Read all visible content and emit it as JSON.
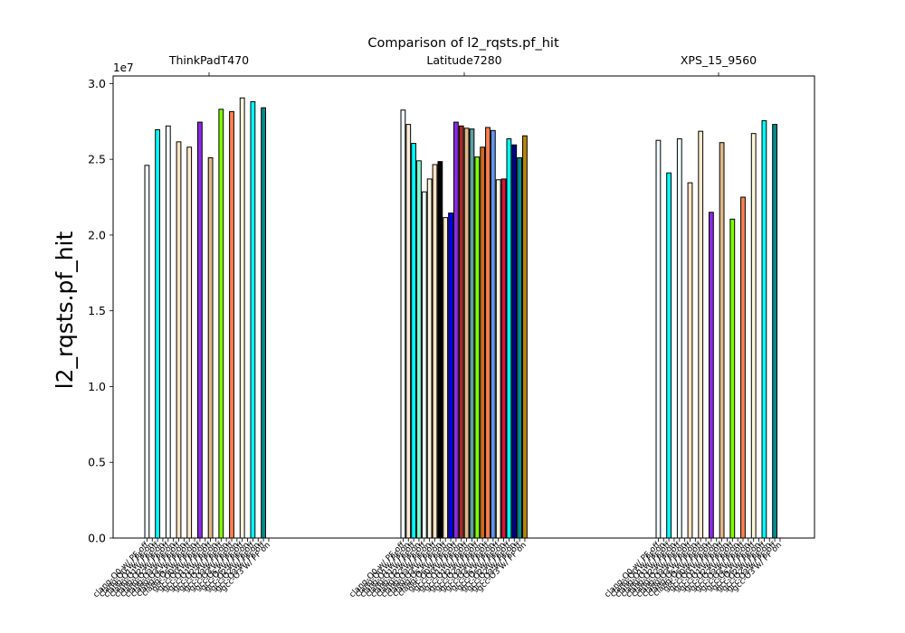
{
  "chart_data": {
    "type": "bar",
    "title": "Comparison of l2_rqsts.pf_hit",
    "ylabel": "l2_rqsts.pf_hit",
    "xlabel": "",
    "y_offset_text": "1e7",
    "ylim": [
      0,
      30500000
    ],
    "yticks": [
      0,
      5000000,
      10000000,
      15000000,
      20000000,
      25000000,
      30000000
    ],
    "ytick_labels": [
      "0.0",
      "0.5",
      "1.0",
      "1.5",
      "2.0",
      "2.5",
      "3.0"
    ],
    "grid": false,
    "legend": "none",
    "groups": [
      {
        "name": "ThinkPadT470",
        "bars": [
          {
            "label": "clang-O0 w/ PF off",
            "value": 24600000,
            "color": "#f0f8ff"
          },
          {
            "label": "clang-O0 w/ PF on",
            "value": 0,
            "color": "#faebd7"
          },
          {
            "label": "clang-O1 w/ PF off",
            "value": 26950000,
            "color": "#00ffff"
          },
          {
            "label": "clang-O1 w/ PF on",
            "value": 0,
            "color": "#7fffd4"
          },
          {
            "label": "clang-O2 w/ PF off",
            "value": 27200000,
            "color": "#f0ffff"
          },
          {
            "label": "clang-O2 w/ PF on",
            "value": 0,
            "color": "#f5f5dc"
          },
          {
            "label": "clang-O3 w/ PF off",
            "value": 26150000,
            "color": "#ffe4c4"
          },
          {
            "label": "clang-O3 w/ PF on",
            "value": 0,
            "color": "#000000"
          },
          {
            "label": "clang-Os w/ PF off",
            "value": 25800000,
            "color": "#ffebcd"
          },
          {
            "label": "clang-Os w/ PF on",
            "value": 0,
            "color": "#0000ff"
          },
          {
            "label": "gcc-O0 w/ PF off",
            "value": 27450000,
            "color": "#8a2be2"
          },
          {
            "label": "gcc-O0 w/ PF on",
            "value": 0,
            "color": "#a52a2a"
          },
          {
            "label": "gcc-O1 w/ PF off",
            "value": 25100000,
            "color": "#deb887"
          },
          {
            "label": "gcc-O1 w/ PF on",
            "value": 0,
            "color": "#5f9ea0"
          },
          {
            "label": "gcc-O2 w/ PF off",
            "value": 28300000,
            "color": "#7fff00"
          },
          {
            "label": "gcc-O2 w/ PF on",
            "value": 0,
            "color": "#d2691e"
          },
          {
            "label": "gcc-O3 w/ PF off",
            "value": 28150000,
            "color": "#ff7f50"
          },
          {
            "label": "gcc-O3 w/ PF on",
            "value": 0,
            "color": "#6495ed"
          },
          {
            "label": "gcc-Os w/ PF off",
            "value": 29050000,
            "color": "#fff8dc"
          },
          {
            "label": "gcc-Os w/ PF on",
            "value": 0,
            "color": "#dc143c"
          },
          {
            "label": "gcc-O2 w/ PF off",
            "value": 28800000,
            "color": "#00ffff"
          },
          {
            "label": "gcc-O2 w/ PF on",
            "value": 0,
            "color": "#00008b"
          },
          {
            "label": "gcc-O3 w/ PF off",
            "value": 28400000,
            "color": "#008b8b"
          },
          {
            "label": "gcc-O3 w/ PF on",
            "value": 0,
            "color": "#b8860b"
          }
        ]
      },
      {
        "name": "Latitude7280",
        "bars": [
          {
            "label": "clang-O0 w/ PF off",
            "value": 28250000,
            "color": "#f0f8ff"
          },
          {
            "label": "clang-O0 w/ PF on",
            "value": 27300000,
            "color": "#faebd7"
          },
          {
            "label": "clang-O1 w/ PF off",
            "value": 26050000,
            "color": "#00ffff"
          },
          {
            "label": "clang-O1 w/ PF on",
            "value": 24900000,
            "color": "#7fffd4"
          },
          {
            "label": "clang-O2 w/ PF off",
            "value": 22850000,
            "color": "#f0ffff"
          },
          {
            "label": "clang-O2 w/ PF on",
            "value": 23700000,
            "color": "#f5f5dc"
          },
          {
            "label": "clang-O3 w/ PF off",
            "value": 24650000,
            "color": "#ffe4c4"
          },
          {
            "label": "clang-O3 w/ PF on",
            "value": 24850000,
            "color": "#000000"
          },
          {
            "label": "clang-Os w/ PF off",
            "value": 21150000,
            "color": "#ffebcd"
          },
          {
            "label": "clang-Os w/ PF on",
            "value": 21450000,
            "color": "#0000ff"
          },
          {
            "label": "gcc-O0 w/ PF off",
            "value": 27450000,
            "color": "#8a2be2"
          },
          {
            "label": "gcc-O0 w/ PF on",
            "value": 27200000,
            "color": "#a52a2a"
          },
          {
            "label": "gcc-O1 w/ PF off",
            "value": 27050000,
            "color": "#deb887"
          },
          {
            "label": "gcc-O1 w/ PF on",
            "value": 27000000,
            "color": "#5f9ea0"
          },
          {
            "label": "gcc-O2 w/ PF off",
            "value": 25150000,
            "color": "#7fff00"
          },
          {
            "label": "gcc-O2 w/ PF on",
            "value": 25800000,
            "color": "#d2691e"
          },
          {
            "label": "gcc-O3 w/ PF off",
            "value": 27100000,
            "color": "#ff7f50"
          },
          {
            "label": "gcc-O3 w/ PF on",
            "value": 26900000,
            "color": "#6495ed"
          },
          {
            "label": "gcc-Os w/ PF off",
            "value": 23650000,
            "color": "#fff8dc"
          },
          {
            "label": "gcc-Os w/ PF on",
            "value": 23700000,
            "color": "#dc143c"
          },
          {
            "label": "gcc-O2 w/ PF off",
            "value": 26350000,
            "color": "#00ffff"
          },
          {
            "label": "gcc-O2 w/ PF on",
            "value": 25950000,
            "color": "#00008b"
          },
          {
            "label": "gcc-O3 w/ PF off",
            "value": 25100000,
            "color": "#008b8b"
          },
          {
            "label": "gcc-O3 w/ PF on",
            "value": 26550000,
            "color": "#b8860b"
          }
        ]
      },
      {
        "name": "XPS_15_9560",
        "bars": [
          {
            "label": "clang-O0 w/ PF off",
            "value": 26250000,
            "color": "#f0f8ff"
          },
          {
            "label": "clang-O0 w/ PF on",
            "value": 0,
            "color": "#faebd7"
          },
          {
            "label": "clang-O1 w/ PF off",
            "value": 24100000,
            "color": "#00ffff"
          },
          {
            "label": "clang-O1 w/ PF on",
            "value": 0,
            "color": "#7fffd4"
          },
          {
            "label": "clang-O2 w/ PF off",
            "value": 26350000,
            "color": "#f0ffff"
          },
          {
            "label": "clang-O2 w/ PF on",
            "value": 0,
            "color": "#f5f5dc"
          },
          {
            "label": "clang-O3 w/ PF off",
            "value": 23450000,
            "color": "#ffe4c4"
          },
          {
            "label": "clang-O3 w/ PF on",
            "value": 0,
            "color": "#000000"
          },
          {
            "label": "clang-Os w/ PF off",
            "value": 26850000,
            "color": "#ffebcd"
          },
          {
            "label": "clang-Os w/ PF on",
            "value": 0,
            "color": "#0000ff"
          },
          {
            "label": "gcc-O0 w/ PF off",
            "value": 21500000,
            "color": "#8a2be2"
          },
          {
            "label": "gcc-O0 w/ PF on",
            "value": 0,
            "color": "#a52a2a"
          },
          {
            "label": "gcc-O1 w/ PF off",
            "value": 26100000,
            "color": "#deb887"
          },
          {
            "label": "gcc-O1 w/ PF on",
            "value": 0,
            "color": "#5f9ea0"
          },
          {
            "label": "gcc-O2 w/ PF off",
            "value": 21050000,
            "color": "#7fff00"
          },
          {
            "label": "gcc-O2 w/ PF on",
            "value": 0,
            "color": "#d2691e"
          },
          {
            "label": "gcc-O3 w/ PF off",
            "value": 22500000,
            "color": "#ff7f50"
          },
          {
            "label": "gcc-O3 w/ PF on",
            "value": 0,
            "color": "#6495ed"
          },
          {
            "label": "gcc-Os w/ PF off",
            "value": 26700000,
            "color": "#fff8dc"
          },
          {
            "label": "gcc-Os w/ PF on",
            "value": 0,
            "color": "#dc143c"
          },
          {
            "label": "gcc-O2 w/ PF off",
            "value": 27550000,
            "color": "#00ffff"
          },
          {
            "label": "gcc-O2 w/ PF on",
            "value": 0,
            "color": "#00008b"
          },
          {
            "label": "gcc-O3 w/ PF off",
            "value": 27300000,
            "color": "#008b8b"
          },
          {
            "label": "gcc-O3 w/ PF on",
            "value": 0,
            "color": "#b8860b"
          }
        ]
      }
    ]
  }
}
